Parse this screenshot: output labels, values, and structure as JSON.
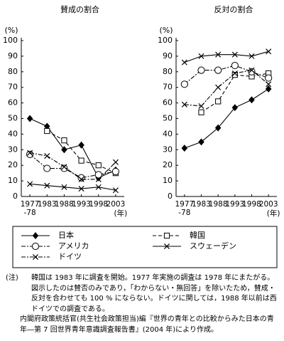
{
  "chart_data": [
    {
      "type": "line",
      "title": "賛成の割合",
      "y_label": "(%)",
      "categories": [
        "1977\n-78",
        "1983",
        "1988",
        "1993",
        "1998",
        "2003"
      ],
      "x_unit": "(年)",
      "ylim": [
        0,
        100
      ],
      "yticks": [
        0,
        10,
        20,
        30,
        40,
        50,
        60,
        70,
        80,
        90,
        100
      ],
      "series": [
        {
          "name": "日本",
          "color": "#000000",
          "marker": "diamond",
          "dash": "solid",
          "values": [
            50,
            45,
            30,
            33,
            12,
            17
          ]
        },
        {
          "name": "韓国",
          "color": "#000000",
          "marker": "square",
          "dash": "dashed",
          "values": [
            null,
            42,
            36,
            23,
            20,
            15
          ]
        },
        {
          "name": "アメリカ",
          "color": "#000000",
          "marker": "circle",
          "dash": "dashdot",
          "values": [
            27,
            18,
            18,
            12,
            14,
            16
          ]
        },
        {
          "name": "スウェーデン",
          "color": "#000000",
          "marker": "x",
          "dash": "solid",
          "values": [
            8,
            7,
            6,
            5,
            6,
            4
          ]
        },
        {
          "name": "ドイツ",
          "color": "#000000",
          "marker": "x",
          "dash": "dashdot",
          "values": [
            28,
            26,
            19,
            11,
            11,
            22
          ]
        }
      ]
    },
    {
      "type": "line",
      "title": "反対の割合",
      "y_label": "(%)",
      "categories": [
        "1977\n-78",
        "1983",
        "1988",
        "1993",
        "1998",
        "2003"
      ],
      "x_unit": "(年)",
      "ylim": [
        0,
        100
      ],
      "yticks": [
        0,
        10,
        20,
        30,
        40,
        50,
        60,
        70,
        80,
        90,
        100
      ],
      "series": [
        {
          "color": "#000000",
          "marker": "diamond",
          "dash": "solid",
          "values": [
            31,
            35,
            44,
            57,
            62,
            69
          ]
        },
        {
          "color": "#000000",
          "marker": "square",
          "dash": "dashed",
          "values": [
            null,
            54,
            61,
            78,
            77,
            79
          ]
        },
        {
          "color": "#000000",
          "marker": "circle",
          "dash": "dashdot",
          "values": [
            72,
            81,
            81,
            84,
            80,
            76
          ]
        },
        {
          "color": "#000000",
          "marker": "x",
          "dash": "solid",
          "values": [
            86,
            90,
            91,
            91,
            90,
            93
          ]
        },
        {
          "color": "#000000",
          "marker": "x",
          "dash": "dashdot",
          "values": [
            59,
            58,
            70,
            79,
            81,
            72
          ]
        }
      ]
    }
  ],
  "notes": {
    "label": "(注)",
    "lines": [
      "韓国は 1983 年に調査を開始。1977 年実施の調査は 1978 年にまたがる。",
      "図示したのは賛否のみであり，「わからない・無回答」を除いたため，賛成・反対を合わせても 100 % にならない。ドイツに関しては，1988 年以前は西ドイツでの調査である。",
      "内閣府政策統括官(共生社会政策担当)編『世界の青年との比較からみた日本の青年―第 7 回世界青年意識調査報告書』(2004 年)により作成。"
    ]
  }
}
